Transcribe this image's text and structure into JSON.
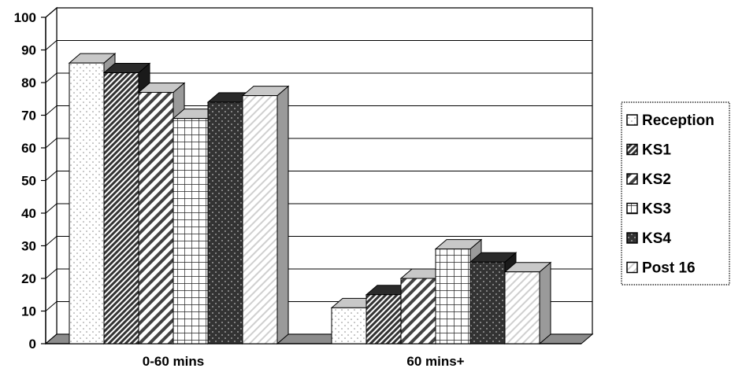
{
  "chart_data": {
    "type": "bar",
    "style": "3d-clustered-column",
    "categories": [
      "0-60 mins",
      "60 mins+"
    ],
    "series": [
      {
        "name": "Reception",
        "values": [
          86,
          11
        ],
        "pattern": "dots-light"
      },
      {
        "name": "KS1",
        "values": [
          83,
          15
        ],
        "pattern": "diag-dense"
      },
      {
        "name": "KS2",
        "values": [
          77,
          20
        ],
        "pattern": "diag-wide"
      },
      {
        "name": "KS3",
        "values": [
          69,
          29
        ],
        "pattern": "grid"
      },
      {
        "name": "KS4",
        "values": [
          74,
          25
        ],
        "pattern": "dots-dark"
      },
      {
        "name": "Post 16",
        "values": [
          76,
          22
        ],
        "pattern": "diag-light"
      }
    ],
    "yticks": [
      0,
      10,
      20,
      30,
      40,
      50,
      60,
      70,
      80,
      90,
      100
    ],
    "ylim": [
      0,
      100
    ],
    "grid": true,
    "legend": "right",
    "title": "",
    "xlabel": "",
    "ylabel": ""
  }
}
